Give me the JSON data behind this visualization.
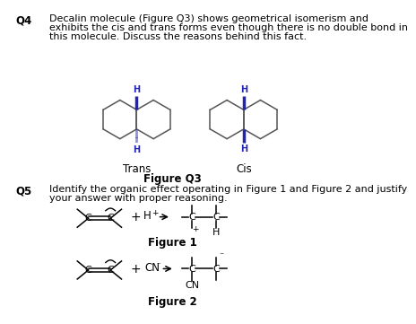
{
  "bg_color": "#ffffff",
  "text_color": "#000000",
  "blue_color": "#2222bb",
  "mol_color": "#555555",
  "q4_label": "Q4",
  "q4_text_line1": "Decalin molecule (Figure Q3) shows geometrical isomerism and",
  "q4_text_line2": "exhibits the cis and trans forms even though there is no double bond in",
  "q4_text_line3": "this molecule. Discuss the reasons behind this fact.",
  "trans_label": "Trans",
  "cis_label": "Cis",
  "figure_q3_label": "Figure Q3",
  "q5_label": "Q5",
  "q5_text_line1": "Identify the organic effect operating in Figure 1 and Figure 2 and justify",
  "q5_text_line2": "your answer with proper reasoning.",
  "figure1_label": "Figure 1",
  "figure2_label": "Figure 2"
}
